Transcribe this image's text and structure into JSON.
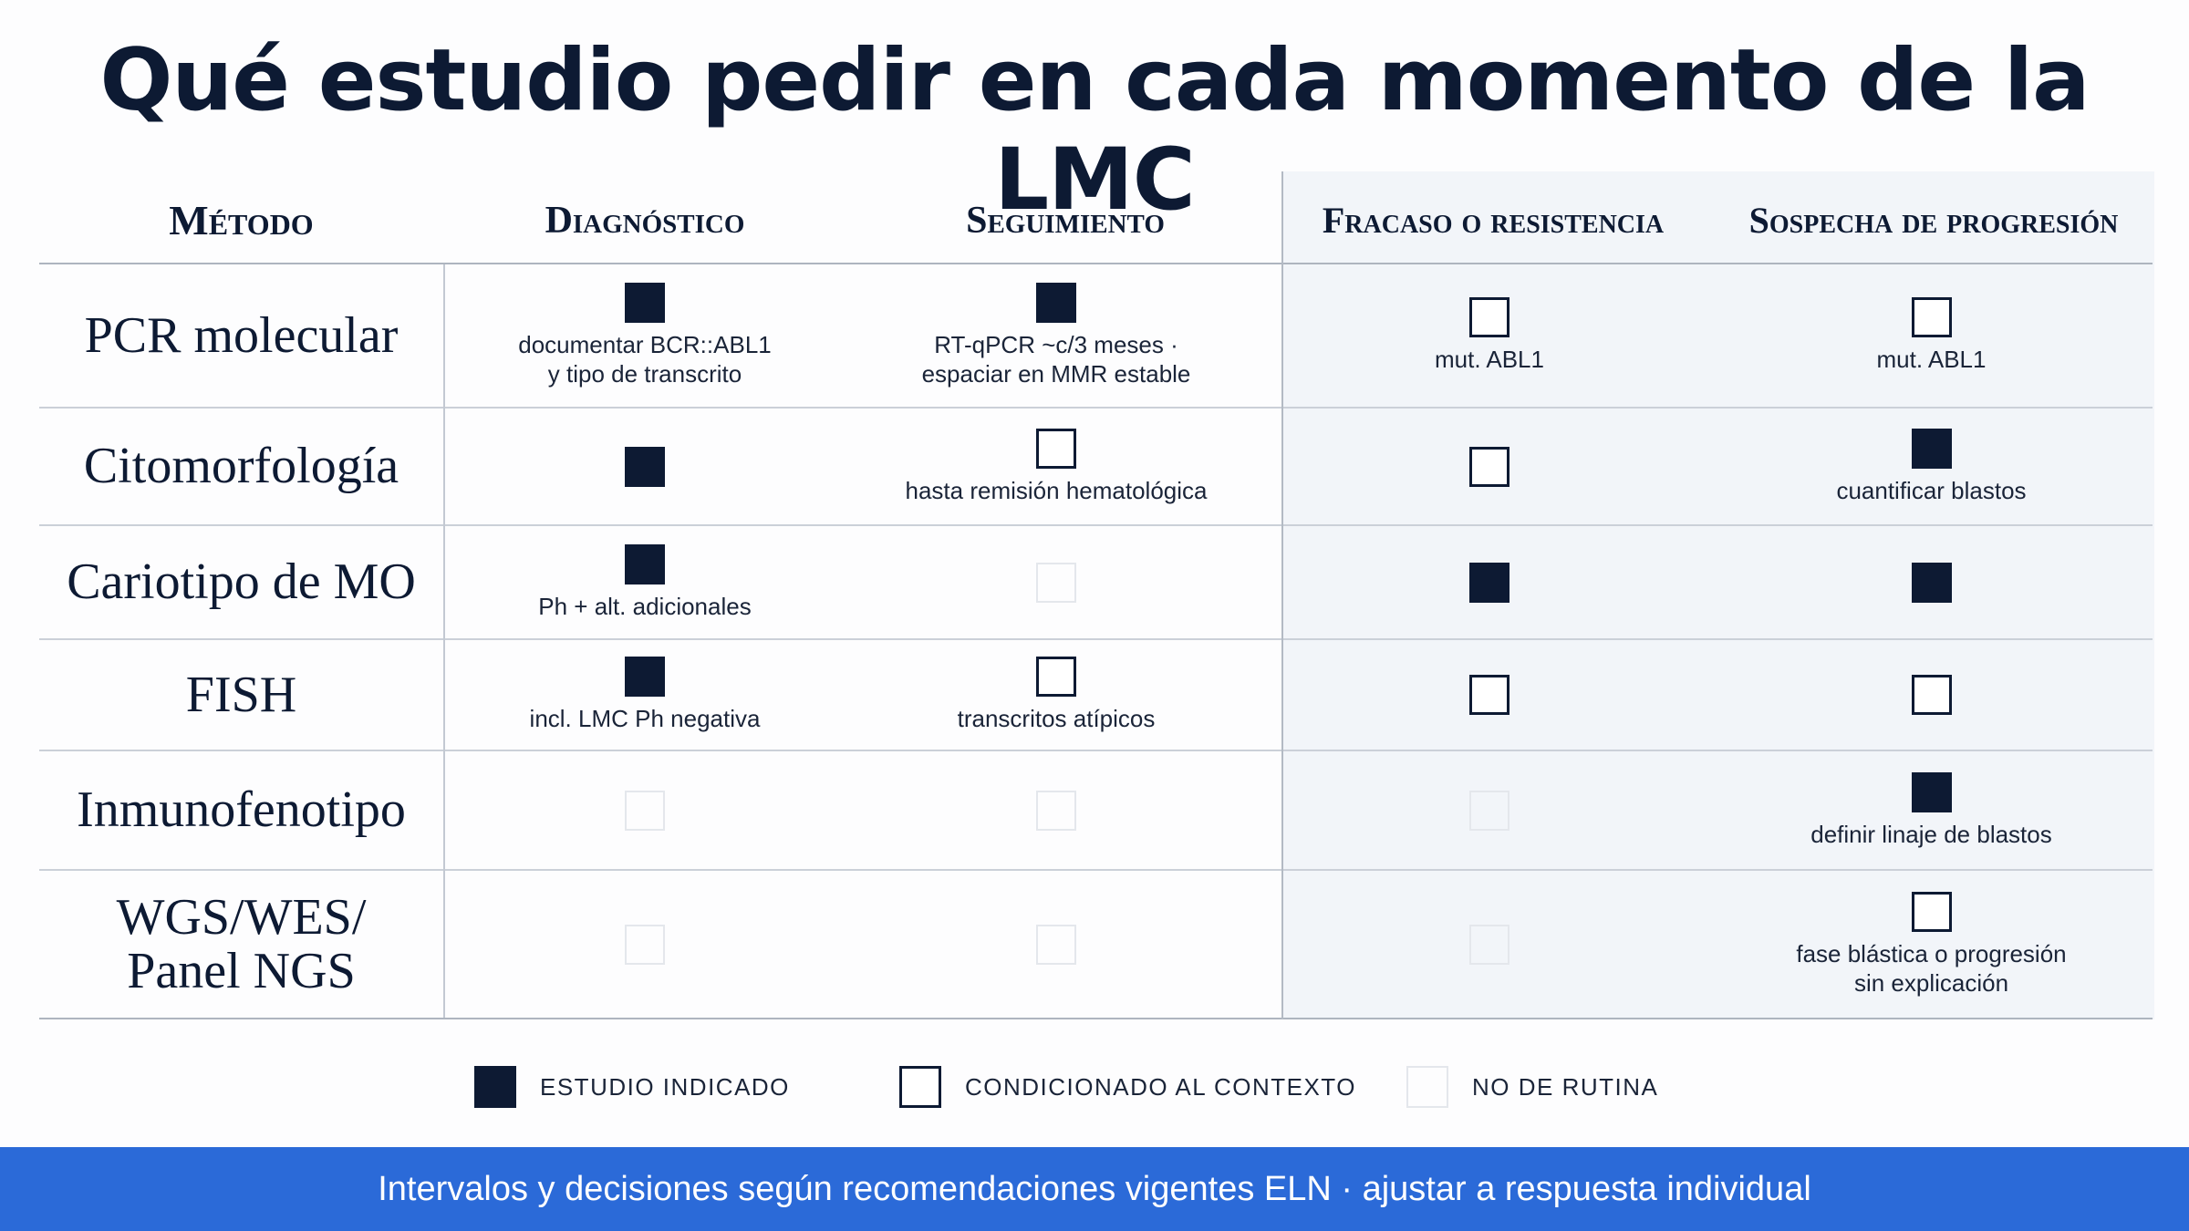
{
  "title": "Qué estudio pedir en cada momento de la LMC",
  "columns": {
    "method": "Método",
    "diagnosis": "Diagnóstico",
    "followup": "Seguimiento",
    "failure": "Fracaso o resistencia",
    "progression": "Sospecha de progresión"
  },
  "rows": [
    {
      "label": "PCR molecular",
      "cells": [
        {
          "status": "indicated",
          "note": "documentar BCR::ABL1\ny tipo de transcrito"
        },
        {
          "status": "indicated",
          "note": "RT-qPCR ~c/3 meses ·\nespaciar en MMR estable"
        },
        {
          "status": "conditional",
          "note": "mut. ABL1"
        },
        {
          "status": "conditional",
          "note": "mut. ABL1"
        }
      ]
    },
    {
      "label": "Citomorfología",
      "cells": [
        {
          "status": "indicated",
          "note": ""
        },
        {
          "status": "conditional",
          "note": "hasta remisión hematológica"
        },
        {
          "status": "conditional",
          "note": ""
        },
        {
          "status": "indicated",
          "note": "cuantificar blastos"
        }
      ]
    },
    {
      "label": "Cariotipo de MO",
      "cells": [
        {
          "status": "indicated",
          "note": "Ph + alt. adicionales"
        },
        {
          "status": "not_routine",
          "note": ""
        },
        {
          "status": "indicated",
          "note": ""
        },
        {
          "status": "indicated",
          "note": ""
        }
      ]
    },
    {
      "label": "FISH",
      "cells": [
        {
          "status": "indicated",
          "note": "incl. LMC Ph negativa"
        },
        {
          "status": "conditional",
          "note": "transcritos atípicos"
        },
        {
          "status": "conditional",
          "note": ""
        },
        {
          "status": "conditional",
          "note": ""
        }
      ]
    },
    {
      "label": "Inmunofenotipo",
      "cells": [
        {
          "status": "not_routine",
          "note": ""
        },
        {
          "status": "not_routine",
          "note": ""
        },
        {
          "status": "not_routine",
          "note": ""
        },
        {
          "status": "indicated",
          "note": "definir linaje de blastos"
        }
      ]
    },
    {
      "label": "WGS/WES/\nPanel NGS",
      "cells": [
        {
          "status": "not_routine",
          "note": ""
        },
        {
          "status": "not_routine",
          "note": ""
        },
        {
          "status": "not_routine",
          "note": ""
        },
        {
          "status": "conditional",
          "note": "fase blástica o progresión\nsin explicación"
        }
      ]
    }
  ],
  "legend": [
    {
      "status": "indicated",
      "label": "ESTUDIO INDICADO"
    },
    {
      "status": "conditional",
      "label": "CONDICIONADO AL CONTEXTO"
    },
    {
      "status": "not_routine",
      "label": "NO DE RUTINA"
    }
  ],
  "footer": "Intervalos y decisiones según recomendaciones vigentes ELN · ajustar a respuesta individual",
  "colors": {
    "navy": "#0d1a33",
    "panel_bg": "#f2f5f9",
    "footer_bg": "#2b6ad8"
  }
}
